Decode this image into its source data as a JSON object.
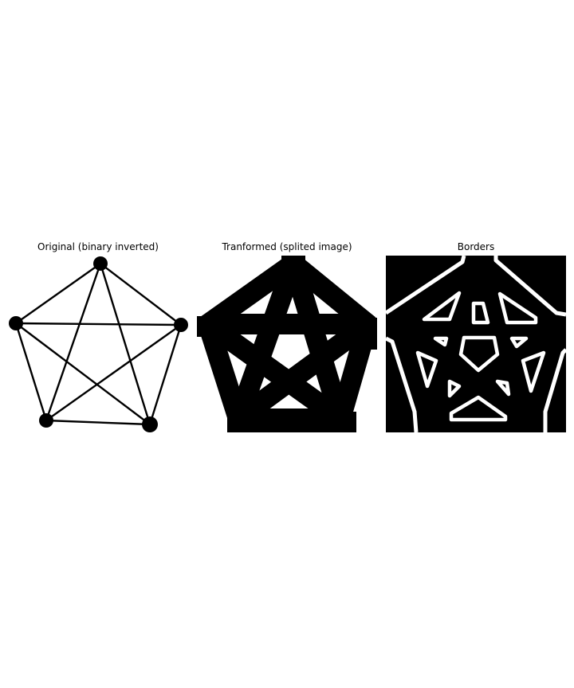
{
  "panels": [
    {
      "title": "Original (binary inverted)"
    },
    {
      "title": "Tranformed (splited image)"
    },
    {
      "title": "Borders"
    }
  ],
  "colors": {
    "background": "#ffffff",
    "foreground": "#000000"
  }
}
